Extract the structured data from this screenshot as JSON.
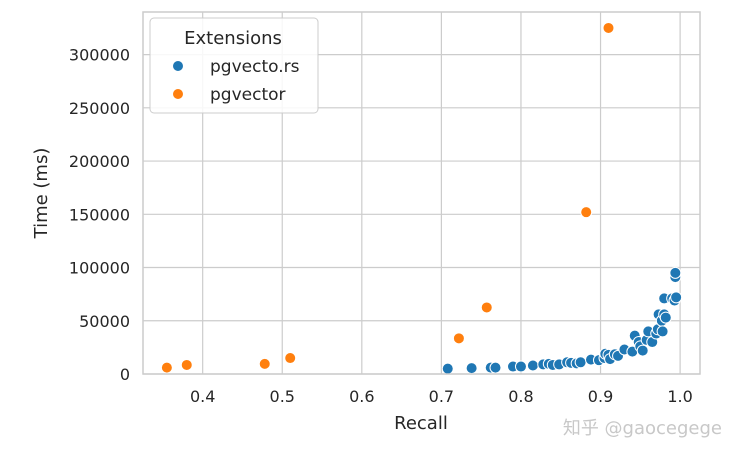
{
  "chart_data": {
    "type": "scatter",
    "xlabel": "Recall",
    "ylabel": "Time (ms)",
    "xlim": [
      0.325,
      1.025
    ],
    "ylim": [
      0,
      340000
    ],
    "xticks": [
      0.4,
      0.5,
      0.6,
      0.7,
      0.8,
      0.9,
      1.0
    ],
    "xtick_labels": [
      "0.4",
      "0.5",
      "0.6",
      "0.7",
      "0.8",
      "0.9",
      "1.0"
    ],
    "yticks": [
      0,
      50000,
      100000,
      150000,
      200000,
      250000,
      300000
    ],
    "ytick_labels": [
      "0",
      "50000",
      "100000",
      "150000",
      "200000",
      "250000",
      "300000"
    ],
    "grid": true,
    "legend": {
      "title": "Extensions",
      "placement": "top-left"
    },
    "series": [
      {
        "name": "pgvecto.rs",
        "color": "#1f77b4",
        "points": [
          [
            0.708,
            5000
          ],
          [
            0.738,
            5500
          ],
          [
            0.762,
            6000
          ],
          [
            0.768,
            6000
          ],
          [
            0.79,
            7000
          ],
          [
            0.8,
            7000
          ],
          [
            0.815,
            8000
          ],
          [
            0.828,
            9000
          ],
          [
            0.835,
            9500
          ],
          [
            0.84,
            8500
          ],
          [
            0.848,
            9000
          ],
          [
            0.858,
            11000
          ],
          [
            0.863,
            10500
          ],
          [
            0.87,
            10000
          ],
          [
            0.875,
            11000
          ],
          [
            0.888,
            13500
          ],
          [
            0.898,
            13000
          ],
          [
            0.905,
            15000
          ],
          [
            0.906,
            19000
          ],
          [
            0.91,
            18000
          ],
          [
            0.912,
            14000
          ],
          [
            0.918,
            18500
          ],
          [
            0.922,
            17000
          ],
          [
            0.93,
            23000
          ],
          [
            0.94,
            21000
          ],
          [
            0.943,
            36000
          ],
          [
            0.948,
            30000
          ],
          [
            0.95,
            26000
          ],
          [
            0.953,
            22000
          ],
          [
            0.958,
            32000
          ],
          [
            0.96,
            40000
          ],
          [
            0.965,
            30000
          ],
          [
            0.97,
            38000
          ],
          [
            0.972,
            42000
          ],
          [
            0.973,
            56000
          ],
          [
            0.977,
            50000
          ],
          [
            0.98,
            56000
          ],
          [
            0.978,
            40000
          ],
          [
            0.982,
            53000
          ],
          [
            0.98,
            71000
          ],
          [
            0.99,
            71000
          ],
          [
            0.993,
            69000
          ],
          [
            0.995,
            72000
          ],
          [
            0.994,
            91000
          ],
          [
            0.994,
            95000
          ]
        ]
      },
      {
        "name": "pgvector",
        "color": "#ff7f0e",
        "points": [
          [
            0.355,
            6000
          ],
          [
            0.38,
            8500
          ],
          [
            0.478,
            9500
          ],
          [
            0.51,
            15000
          ],
          [
            0.722,
            33500
          ],
          [
            0.757,
            62500
          ],
          [
            0.882,
            152000
          ],
          [
            0.91,
            325000
          ]
        ]
      }
    ]
  },
  "watermark": "知乎 @gaocegege"
}
